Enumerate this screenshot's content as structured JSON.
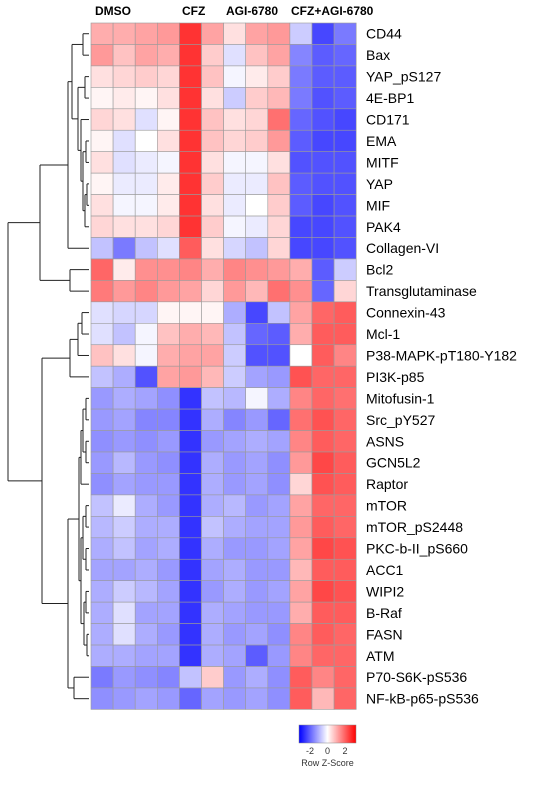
{
  "chart_data": {
    "type": "heatmap",
    "column_groups": [
      "DMSO",
      "CFZ",
      "AGI-6780",
      "CFZ+AGI-6780"
    ],
    "columns": 12,
    "rows": [
      "CD44",
      "Bax",
      "YAP_pS127",
      "4E-BP1",
      "CD171",
      "EMA",
      "MITF",
      "YAP",
      "MIF",
      "PAK4",
      "Collagen-VI",
      "Bcl2",
      "Transglutaminase",
      "Connexin-43",
      "Mcl-1",
      "P38-MAPK-pT180-Y182",
      "PI3K-p85",
      "Mitofusin-1",
      "Src_pY527",
      "ASNS",
      "GCN5L2",
      "Raptor",
      "mTOR",
      "mTOR_pS2448",
      "PKC-b-II_pS660",
      "ACC1",
      "WIPI2",
      "B-Raf",
      "FASN",
      "ATM",
      "P70-S6K-pS536",
      "NF-kB-p65-pS536"
    ],
    "values": [
      [
        0.8,
        0.8,
        0.9,
        1.0,
        2.0,
        0.9,
        0.3,
        0.9,
        1.0,
        -0.5,
        -1.8,
        -1.3
      ],
      [
        1.0,
        0.6,
        0.9,
        0.8,
        2.0,
        0.5,
        -0.3,
        0.6,
        0.9,
        -1.2,
        -1.6,
        -1.5
      ],
      [
        0.3,
        0.4,
        0.5,
        0.4,
        2.0,
        0.6,
        -0.1,
        0.2,
        0.5,
        -1.3,
        -1.6,
        -1.6
      ],
      [
        0.1,
        0.2,
        0.1,
        0.3,
        2.0,
        0.3,
        -0.5,
        0.5,
        0.7,
        -1.3,
        -1.7,
        -1.6
      ],
      [
        0.4,
        0.3,
        -0.3,
        0.1,
        2.0,
        0.6,
        0.3,
        0.4,
        1.4,
        -1.5,
        -1.7,
        -1.8
      ],
      [
        0.1,
        -0.3,
        0.0,
        0.3,
        2.0,
        0.6,
        0.4,
        0.5,
        1.0,
        -1.6,
        -1.8,
        -1.8
      ],
      [
        0.3,
        -0.3,
        -0.2,
        -0.1,
        2.0,
        0.3,
        -0.1,
        -0.1,
        0.3,
        -1.7,
        -1.7,
        -1.7
      ],
      [
        0.1,
        -0.2,
        -0.2,
        0.2,
        2.0,
        0.5,
        -0.2,
        -0.2,
        0.6,
        -1.6,
        -1.7,
        -1.7
      ],
      [
        0.3,
        -0.1,
        -0.1,
        0.2,
        2.0,
        0.3,
        -0.2,
        0.0,
        0.5,
        -1.6,
        -1.8,
        -1.7
      ],
      [
        0.4,
        0.3,
        0.3,
        0.4,
        2.0,
        0.5,
        -0.1,
        -0.2,
        0.4,
        -1.8,
        -1.8,
        -1.7
      ],
      [
        -0.6,
        -1.3,
        -0.6,
        -0.3,
        1.6,
        0.3,
        -0.4,
        -0.6,
        0.4,
        -1.8,
        -1.8,
        -1.7
      ],
      [
        1.5,
        0.2,
        1.1,
        1.1,
        1.2,
        0.8,
        1.2,
        1.1,
        1.0,
        0.8,
        -1.6,
        -0.5
      ],
      [
        1.3,
        1.0,
        1.2,
        1.0,
        0.9,
        0.4,
        1.0,
        0.7,
        1.4,
        1.1,
        -1.5,
        0.4
      ],
      [
        -0.3,
        -0.4,
        -0.4,
        0.1,
        0.1,
        0.1,
        -0.8,
        -1.8,
        -0.6,
        0.9,
        1.5,
        1.6
      ],
      [
        -0.3,
        -0.6,
        -0.1,
        0.6,
        0.8,
        0.7,
        -0.6,
        -1.5,
        -1.6,
        0.8,
        1.6,
        1.6
      ],
      [
        0.6,
        0.3,
        -0.1,
        0.8,
        0.9,
        0.9,
        -0.5,
        -1.7,
        -1.7,
        0.0,
        1.6,
        1.2
      ],
      [
        -0.6,
        -0.8,
        -1.7,
        0.9,
        1.0,
        0.7,
        -0.5,
        -0.9,
        -1.0,
        1.7,
        1.5,
        1.5
      ],
      [
        -1.0,
        -0.8,
        -0.9,
        -1.1,
        -2.0,
        -0.6,
        -0.7,
        -0.1,
        -0.8,
        1.2,
        1.5,
        1.4
      ],
      [
        -1.0,
        -0.9,
        -1.2,
        -1.2,
        -2.0,
        -0.8,
        -1.2,
        -1.0,
        -1.5,
        1.4,
        1.7,
        1.5
      ],
      [
        -1.1,
        -1.0,
        -1.1,
        -1.0,
        -2.0,
        -1.0,
        -0.9,
        -0.8,
        -0.9,
        1.2,
        1.6,
        1.5
      ],
      [
        -1.0,
        -0.7,
        -1.0,
        -1.1,
        -2.0,
        -0.8,
        -1.0,
        -0.9,
        -1.1,
        1.0,
        1.8,
        1.6
      ],
      [
        -1.1,
        -0.9,
        -1.0,
        -1.0,
        -2.0,
        -0.8,
        -1.0,
        -0.9,
        -1.1,
        0.4,
        1.7,
        1.6
      ],
      [
        -0.6,
        -0.2,
        -0.8,
        -1.0,
        -2.0,
        -0.8,
        -0.7,
        -1.0,
        -0.9,
        0.9,
        1.5,
        1.5
      ],
      [
        -0.7,
        -0.5,
        -0.8,
        -0.8,
        -2.0,
        -0.6,
        -0.8,
        -0.9,
        -0.9,
        1.0,
        1.6,
        1.5
      ],
      [
        -0.8,
        -0.6,
        -0.9,
        -0.8,
        -2.0,
        -0.8,
        -1.0,
        -1.0,
        -0.9,
        0.9,
        1.8,
        1.7
      ],
      [
        -0.9,
        -0.9,
        -0.8,
        -1.0,
        -2.0,
        -0.9,
        -0.8,
        -1.0,
        -1.0,
        0.7,
        1.6,
        1.6
      ],
      [
        -0.8,
        -0.5,
        -0.7,
        -0.9,
        -2.0,
        -1.0,
        -0.8,
        -1.0,
        -0.9,
        0.9,
        1.8,
        1.7
      ],
      [
        -0.8,
        -0.3,
        -0.9,
        -0.9,
        -2.0,
        -0.8,
        -0.9,
        -1.0,
        -1.0,
        0.8,
        1.6,
        1.6
      ],
      [
        -0.8,
        -0.3,
        -0.8,
        -1.0,
        -2.0,
        -0.8,
        -1.0,
        -0.9,
        -1.1,
        1.2,
        1.6,
        1.5
      ],
      [
        -0.8,
        -0.8,
        -0.9,
        -0.9,
        -2.0,
        -0.8,
        -0.9,
        -1.6,
        -1.0,
        1.2,
        1.5,
        1.5
      ],
      [
        -1.3,
        -1.0,
        -1.1,
        -1.2,
        -0.6,
        0.5,
        -1.0,
        -0.8,
        -1.1,
        1.6,
        1.2,
        1.5
      ],
      [
        -1.1,
        -1.0,
        -0.9,
        -1.0,
        -1.5,
        -0.9,
        -1.0,
        -0.9,
        -1.1,
        1.6,
        0.7,
        1.5
      ]
    ],
    "color_key": {
      "title": "Row Z-Score",
      "ticks": [
        "-2",
        "0",
        "2"
      ],
      "range": [
        -2.5,
        2.5
      ],
      "low_color": "#0000ff",
      "mid_color": "#ffffff",
      "high_color": "#ff0000"
    }
  }
}
